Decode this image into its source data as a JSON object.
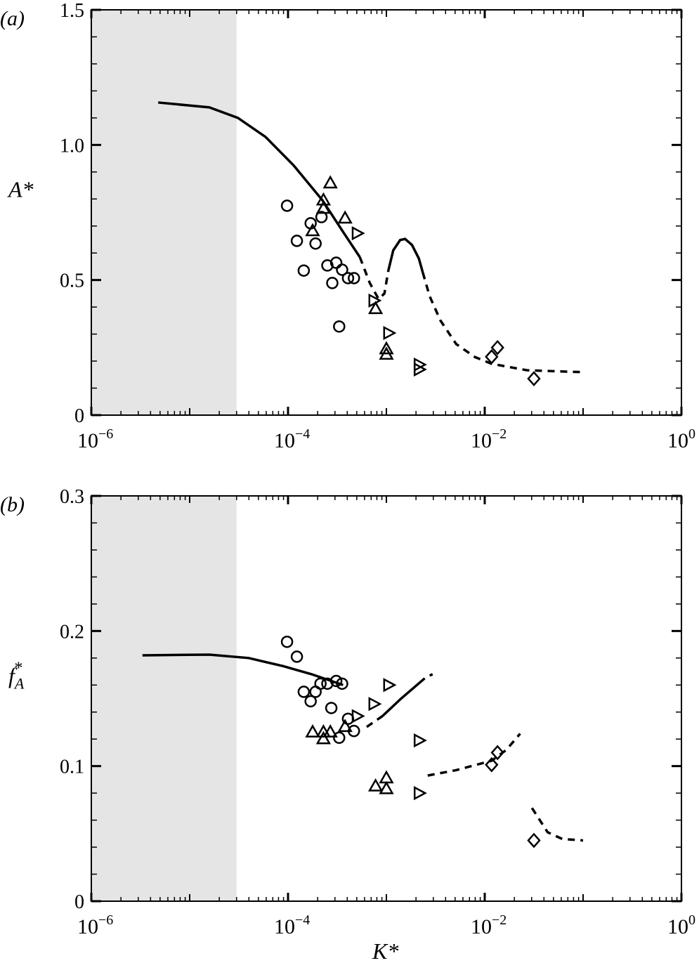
{
  "chart_data": [
    {
      "type": "scatter",
      "panel_label": "(a)",
      "xlabel": "",
      "ylabel": "A*",
      "xscale": "log",
      "xlim": [
        1e-06,
        1
      ],
      "ylim": [
        0,
        1.5
      ],
      "x_tick_labels": [
        {
          "base": "10",
          "exp": "−6",
          "value": 1e-06
        },
        {
          "base": "10",
          "exp": "−4",
          "value": 0.0001
        },
        {
          "base": "10",
          "exp": "−2",
          "value": 0.01
        },
        {
          "base": "10",
          "exp": "0",
          "value": 1
        }
      ],
      "y_ticks": [
        0,
        0.5,
        1.0,
        1.5
      ],
      "y_tick_labels": [
        "0",
        "0.5",
        "1.0",
        "1.5"
      ],
      "shaded_region_x": [
        1e-06,
        3e-05
      ],
      "shade_color": "#e5e5e5",
      "markers": {
        "circle": [
          [
            -4.01,
            0.775
          ],
          [
            -3.91,
            0.645
          ],
          [
            -3.84,
            0.535
          ],
          [
            -3.77,
            0.71
          ],
          [
            -3.72,
            0.635
          ],
          [
            -3.66,
            0.733
          ],
          [
            -3.6,
            0.554
          ],
          [
            -3.55,
            0.489
          ],
          [
            -3.51,
            0.564
          ],
          [
            -3.45,
            0.538
          ],
          [
            -3.39,
            0.507
          ],
          [
            -3.33,
            0.507
          ],
          [
            -3.48,
            0.328
          ]
        ],
        "triangle-up": [
          [
            -3.57,
            0.858
          ],
          [
            -3.64,
            0.795
          ],
          [
            -3.64,
            0.764
          ],
          [
            -3.75,
            0.681
          ],
          [
            -3.42,
            0.728
          ],
          [
            -3.11,
            0.393
          ],
          [
            -3.0,
            0.244
          ],
          [
            -3.0,
            0.224
          ]
        ],
        "triangle-right": [
          [
            -3.3,
            0.673
          ],
          [
            -3.13,
            0.424
          ],
          [
            -2.98,
            0.304
          ],
          [
            -2.67,
            0.187
          ],
          [
            -2.67,
            0.169
          ]
        ],
        "diamond": [
          [
            -1.93,
            0.216
          ],
          [
            -1.87,
            0.25
          ],
          [
            -1.5,
            0.135
          ]
        ]
      },
      "marker_x_encoding": "log10(K*)",
      "curves": [
        {
          "style": "solid",
          "points": [
            [
              -5.32,
              1.157
            ],
            [
              -4.8,
              1.139
            ],
            [
              -4.51,
              1.1
            ],
            [
              -4.23,
              1.03
            ],
            [
              -3.94,
              0.923
            ],
            [
              -3.65,
              0.795
            ],
            [
              -3.44,
              0.678
            ],
            [
              -3.27,
              0.585
            ]
          ]
        },
        {
          "style": "dashed",
          "points": [
            [
              -3.27,
              0.585
            ],
            [
              -3.17,
              0.49
            ],
            [
              -3.08,
              0.43
            ],
            [
              -3.02,
              0.45
            ],
            [
              -2.98,
              0.535
            ]
          ]
        },
        {
          "style": "solid",
          "points": [
            [
              -2.98,
              0.535
            ],
            [
              -2.93,
              0.61
            ],
            [
              -2.86,
              0.648
            ],
            [
              -2.81,
              0.652
            ],
            [
              -2.74,
              0.63
            ],
            [
              -2.67,
              0.58
            ],
            [
              -2.63,
              0.528
            ]
          ]
        },
        {
          "style": "dashed",
          "points": [
            [
              -2.63,
              0.528
            ],
            [
              -2.56,
              0.44
            ],
            [
              -2.45,
              0.35
            ],
            [
              -2.29,
              0.263
            ],
            [
              -2.1,
              0.215
            ],
            [
              -1.93,
              0.19
            ],
            [
              -1.57,
              0.166
            ],
            [
              -1.0,
              0.159
            ]
          ]
        }
      ]
    },
    {
      "type": "scatter",
      "panel_label": "(b)",
      "xlabel": "K*",
      "ylabel": "f",
      "ylabel_sub": "A",
      "ylabel_sup": "*",
      "xscale": "log",
      "xlim": [
        1e-06,
        1
      ],
      "ylim": [
        0,
        0.3
      ],
      "x_tick_labels": [
        {
          "base": "10",
          "exp": "−6",
          "value": 1e-06
        },
        {
          "base": "10",
          "exp": "−4",
          "value": 0.0001
        },
        {
          "base": "10",
          "exp": "−2",
          "value": 0.01
        },
        {
          "base": "10",
          "exp": "0",
          "value": 1
        }
      ],
      "y_ticks": [
        0,
        0.1,
        0.2,
        0.3
      ],
      "y_tick_labels": [
        "0",
        "0.1",
        "0.2",
        "0.3"
      ],
      "shaded_region_x": [
        1e-06,
        3e-05
      ],
      "shade_color": "#e5e5e5",
      "markers": {
        "circle": [
          [
            -4.01,
            0.192
          ],
          [
            -3.91,
            0.181
          ],
          [
            -3.84,
            0.155
          ],
          [
            -3.77,
            0.148
          ],
          [
            -3.72,
            0.155
          ],
          [
            -3.67,
            0.161
          ],
          [
            -3.6,
            0.161
          ],
          [
            -3.56,
            0.143
          ],
          [
            -3.51,
            0.163
          ],
          [
            -3.45,
            0.161
          ],
          [
            -3.39,
            0.135
          ],
          [
            -3.33,
            0.126
          ],
          [
            -3.48,
            0.121
          ]
        ],
        "triangle-up": [
          [
            -3.75,
            0.125
          ],
          [
            -3.64,
            0.12
          ],
          [
            -3.64,
            0.125
          ],
          [
            -3.57,
            0.125
          ],
          [
            -3.42,
            0.129
          ],
          [
            -3.11,
            0.085
          ],
          [
            -3.0,
            0.091
          ],
          [
            -3.0,
            0.083
          ]
        ],
        "triangle-right": [
          [
            -3.3,
            0.137
          ],
          [
            -3.13,
            0.146
          ],
          [
            -2.98,
            0.16
          ],
          [
            -2.67,
            0.119
          ],
          [
            -2.67,
            0.08
          ]
        ],
        "diamond": [
          [
            -1.93,
            0.101
          ],
          [
            -1.87,
            0.11
          ],
          [
            -1.5,
            0.045
          ]
        ]
      },
      "marker_x_encoding": "log10(K*)",
      "curves": [
        {
          "style": "solid",
          "points": [
            [
              -5.48,
              0.182
            ],
            [
              -4.8,
              0.1825
            ],
            [
              -4.4,
              0.18
            ],
            [
              -4.05,
              0.174
            ],
            [
              -3.76,
              0.168
            ],
            [
              -3.44,
              0.16
            ]
          ]
        },
        {
          "style": "dashed",
          "points": [
            [
              -3.2,
              0.129
            ],
            [
              -3.04,
              0.137
            ]
          ]
        },
        {
          "style": "solid",
          "points": [
            [
              -3.04,
              0.137
            ],
            [
              -2.85,
              0.15
            ],
            [
              -2.61,
              0.165
            ]
          ]
        },
        {
          "style": "dashed",
          "points": [
            [
              -2.56,
              0.167
            ],
            [
              -2.53,
              0.168
            ]
          ]
        },
        {
          "style": "dashed",
          "points": [
            [
              -2.58,
              0.093
            ],
            [
              -2.29,
              0.097
            ],
            [
              -1.93,
              0.104
            ],
            [
              -1.78,
              0.112
            ],
            [
              -1.64,
              0.124
            ]
          ]
        },
        {
          "style": "dashed",
          "points": [
            [
              -1.52,
              0.069
            ],
            [
              -1.36,
              0.051
            ],
            [
              -1.21,
              0.046
            ],
            [
              -1.0,
              0.045
            ]
          ]
        }
      ]
    }
  ]
}
